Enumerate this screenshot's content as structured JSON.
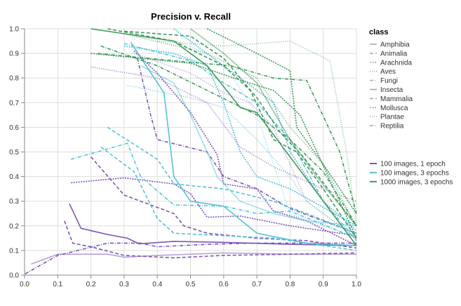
{
  "chart_data": {
    "type": "line",
    "title": "Precision v. Recall",
    "xlabel": "",
    "ylabel": "",
    "xlim": [
      0,
      1
    ],
    "ylim": [
      0,
      1
    ],
    "x_ticks": [
      "0.0",
      "0.1",
      "0.2",
      "0.3",
      "0.4",
      "0.5",
      "0.6",
      "0.7",
      "0.8",
      "0.9",
      "1.0"
    ],
    "y_ticks": [
      "0.0",
      "0.1",
      "0.2",
      "0.3",
      "0.4",
      "0.5",
      "0.6",
      "0.7",
      "0.8",
      "0.9",
      "1.0"
    ],
    "grid": true,
    "legend_placement": "right",
    "class_legend": {
      "title": "class",
      "entries": [
        {
          "name": "Amphibia",
          "dash": "solid"
        },
        {
          "name": "Animalia",
          "dash": "dashed"
        },
        {
          "name": "Arachnida",
          "dash": "dotted"
        },
        {
          "name": "Aves",
          "dash": "sparse-dotted"
        },
        {
          "name": "Fungi",
          "dash": "dash-dot"
        },
        {
          "name": "Insecta",
          "dash": "solid"
        },
        {
          "name": "Mammalia",
          "dash": "dashed"
        },
        {
          "name": "Mollusca",
          "dash": "dotted"
        },
        {
          "name": "Plantae",
          "dash": "sparse-dotted"
        },
        {
          "name": "Reptilia",
          "dash": "dash-dot"
        }
      ]
    },
    "model_legend": [
      {
        "name": "100 images, 1 epoch",
        "color": "#7d55b8"
      },
      {
        "name": "100 images, 3 epochs",
        "color": "#55c3d5"
      },
      {
        "name": "1000 images, 3 epochs",
        "color": "#3f9a5c"
      }
    ],
    "series": [
      {
        "model": "100 images, 1 epoch",
        "class": "Amphibia",
        "points": [
          [
            0.02,
            0.045
          ],
          [
            0.1,
            0.085
          ],
          [
            0.25,
            0.085
          ],
          [
            0.3,
            0.073
          ],
          [
            0.4,
            0.08
          ],
          [
            0.5,
            0.085
          ],
          [
            0.6,
            0.09
          ],
          [
            0.7,
            0.088
          ],
          [
            0.8,
            0.085
          ],
          [
            1,
            0.085
          ]
        ]
      },
      {
        "model": "100 images, 1 epoch",
        "class": "Insecta",
        "points": [
          [
            0.135,
            0.29
          ],
          [
            0.17,
            0.19
          ],
          [
            0.25,
            0.165
          ],
          [
            0.31,
            0.15
          ],
          [
            0.345,
            0.127
          ],
          [
            0.45,
            0.137
          ],
          [
            0.6,
            0.133
          ],
          [
            0.8,
            0.125
          ],
          [
            1,
            0.12
          ]
        ]
      },
      {
        "model": "100 images, 1 epoch",
        "class": "Animalia",
        "points": [
          [
            0.12,
            0.22
          ],
          [
            0.145,
            0.13
          ],
          [
            0.2,
            0.115
          ],
          [
            0.3,
            0.08
          ],
          [
            0.45,
            0.07
          ],
          [
            0.6,
            0.08
          ],
          [
            0.8,
            0.085
          ],
          [
            1,
            0.09
          ]
        ]
      },
      {
        "model": "100 images, 1 epoch",
        "class": "Mammalia",
        "points": [
          [
            0.2,
            0.48
          ],
          [
            0.3,
            0.325
          ],
          [
            0.45,
            0.25
          ],
          [
            0.48,
            0.2
          ],
          [
            0.55,
            0.17
          ],
          [
            0.7,
            0.15
          ],
          [
            0.85,
            0.14
          ],
          [
            1,
            0.11
          ]
        ]
      },
      {
        "model": "100 images, 1 epoch",
        "class": "Arachnida",
        "points": [
          [
            0.14,
            0.375
          ],
          [
            0.3,
            0.395
          ],
          [
            0.45,
            0.37
          ],
          [
            0.5,
            0.33
          ],
          [
            0.55,
            0.235
          ],
          [
            0.65,
            0.24
          ],
          [
            0.8,
            0.2
          ],
          [
            1,
            0.16
          ]
        ]
      },
      {
        "model": "100 images, 1 epoch",
        "class": "Mollusca",
        "points": [
          [
            0.33,
            0.91
          ],
          [
            0.4,
            0.82
          ],
          [
            0.5,
            0.66
          ],
          [
            0.58,
            0.49
          ],
          [
            0.6,
            0.37
          ],
          [
            0.7,
            0.35
          ],
          [
            0.75,
            0.26
          ],
          [
            0.85,
            0.22
          ],
          [
            1,
            0.12
          ]
        ]
      },
      {
        "model": "100 images, 1 epoch",
        "class": "Aves",
        "points": [
          [
            0.2,
            0.845
          ],
          [
            0.4,
            0.8
          ],
          [
            0.55,
            0.7
          ],
          [
            0.65,
            0.52
          ],
          [
            0.75,
            0.44
          ],
          [
            0.9,
            0.35
          ],
          [
            1,
            0.3
          ]
        ]
      },
      {
        "model": "100 images, 1 epoch",
        "class": "Plantae",
        "points": [
          [
            0.33,
            0.9
          ],
          [
            0.5,
            0.82
          ],
          [
            0.6,
            0.74
          ],
          [
            0.68,
            0.7
          ],
          [
            0.75,
            0.6
          ],
          [
            0.8,
            0.45
          ],
          [
            0.85,
            0.3
          ],
          [
            1,
            0.15
          ]
        ]
      },
      {
        "model": "100 images, 1 epoch",
        "class": "Reptilia",
        "points": [
          [
            0.002,
            0.005
          ],
          [
            0.1,
            0.08
          ],
          [
            0.25,
            0.13
          ],
          [
            0.35,
            0.13
          ],
          [
            0.4,
            0.115
          ],
          [
            0.55,
            0.125
          ],
          [
            0.7,
            0.13
          ],
          [
            1,
            0.13
          ]
        ]
      },
      {
        "model": "100 images, 1 epoch",
        "class": "Fungi",
        "points": [
          [
            0.34,
            0.88
          ],
          [
            0.38,
            0.65
          ],
          [
            0.4,
            0.55
          ],
          [
            0.55,
            0.5
          ],
          [
            0.6,
            0.4
          ],
          [
            0.7,
            0.35
          ],
          [
            0.8,
            0.27
          ],
          [
            1,
            0.17
          ]
        ]
      },
      {
        "model": "100 images, 3 epochs",
        "class": "Insecta",
        "points": [
          [
            0.32,
            0.945
          ],
          [
            0.42,
            0.74
          ],
          [
            0.45,
            0.4
          ],
          [
            0.5,
            0.3
          ],
          [
            0.6,
            0.28
          ],
          [
            0.7,
            0.17
          ],
          [
            0.85,
            0.13
          ],
          [
            1,
            0.12
          ]
        ]
      },
      {
        "model": "100 images, 3 epochs",
        "class": "Amphibia",
        "points": [
          [
            0.35,
            0.85
          ],
          [
            0.45,
            0.78
          ],
          [
            0.5,
            0.65
          ],
          [
            0.55,
            0.5
          ],
          [
            0.58,
            0.4
          ],
          [
            0.65,
            0.3
          ],
          [
            0.75,
            0.25
          ],
          [
            0.85,
            0.22
          ],
          [
            1,
            0.2
          ]
        ]
      },
      {
        "model": "100 images, 3 epochs",
        "class": "Animalia",
        "points": [
          [
            0.25,
            0.6
          ],
          [
            0.4,
            0.47
          ],
          [
            0.45,
            0.37
          ],
          [
            0.6,
            0.35
          ],
          [
            0.75,
            0.3
          ],
          [
            0.85,
            0.25
          ],
          [
            1,
            0.17
          ]
        ]
      },
      {
        "model": "100 images, 3 epochs",
        "class": "Mammalia",
        "points": [
          [
            0.23,
            0.52
          ],
          [
            0.33,
            0.42
          ],
          [
            0.4,
            0.23
          ],
          [
            0.45,
            0.17
          ],
          [
            0.6,
            0.16
          ],
          [
            0.75,
            0.15
          ],
          [
            1,
            0.1
          ]
        ]
      },
      {
        "model": "100 images, 3 epochs",
        "class": "Fungi",
        "points": [
          [
            0.14,
            0.47
          ],
          [
            0.31,
            0.535
          ],
          [
            0.35,
            0.4
          ],
          [
            0.45,
            0.285
          ],
          [
            0.6,
            0.28
          ],
          [
            0.7,
            0.25
          ],
          [
            0.8,
            0.26
          ],
          [
            1,
            0.15
          ]
        ]
      },
      {
        "model": "100 images, 3 epochs",
        "class": "Reptilia",
        "points": [
          [
            0.3,
            0.94
          ],
          [
            0.5,
            0.87
          ],
          [
            0.6,
            0.78
          ],
          [
            0.7,
            0.7
          ],
          [
            0.8,
            0.55
          ],
          [
            0.9,
            0.3
          ],
          [
            1,
            0.14
          ]
        ]
      },
      {
        "model": "100 images, 3 epochs",
        "class": "Aves",
        "points": [
          [
            0.31,
            0.77
          ],
          [
            0.5,
            0.72
          ],
          [
            0.6,
            0.68
          ],
          [
            0.7,
            0.55
          ],
          [
            0.8,
            0.4
          ],
          [
            0.85,
            0.3
          ],
          [
            1,
            0.15
          ]
        ]
      },
      {
        "model": "100 images, 3 epochs",
        "class": "Plantae",
        "points": [
          [
            0.4,
            0.98
          ],
          [
            0.55,
            0.9
          ],
          [
            0.62,
            0.82
          ],
          [
            0.7,
            0.65
          ],
          [
            0.75,
            0.45
          ],
          [
            0.8,
            0.25
          ],
          [
            1,
            0.15
          ]
        ]
      },
      {
        "model": "100 images, 3 epochs",
        "class": "Arachnida",
        "points": [
          [
            0.3,
            0.93
          ],
          [
            0.45,
            0.9
          ],
          [
            0.55,
            0.85
          ],
          [
            0.6,
            0.7
          ],
          [
            0.65,
            0.5
          ],
          [
            0.7,
            0.4
          ],
          [
            0.8,
            0.35
          ],
          [
            1,
            0.2
          ]
        ]
      },
      {
        "model": "100 images, 3 epochs",
        "class": "Mollusca",
        "points": [
          [
            0.45,
            1
          ],
          [
            0.6,
            0.85
          ],
          [
            0.7,
            0.75
          ],
          [
            0.75,
            0.7
          ],
          [
            0.8,
            0.5
          ],
          [
            0.9,
            0.3
          ],
          [
            1,
            0.18
          ]
        ]
      },
      {
        "model": "1000 images, 3 epochs",
        "class": "Insecta",
        "points": [
          [
            0.2,
            1
          ],
          [
            0.3,
            0.98
          ],
          [
            0.45,
            0.95
          ],
          [
            0.55,
            0.85
          ],
          [
            0.65,
            0.68
          ],
          [
            0.7,
            0.66
          ],
          [
            0.8,
            0.48
          ],
          [
            0.9,
            0.3
          ],
          [
            1,
            0.12
          ]
        ]
      },
      {
        "model": "1000 images, 3 epochs",
        "class": "Amphibia",
        "points": [
          [
            0.5,
            1
          ],
          [
            0.6,
            0.9
          ],
          [
            0.7,
            0.78
          ],
          [
            0.8,
            0.55
          ],
          [
            0.88,
            0.4
          ],
          [
            1,
            0.2
          ]
        ]
      },
      {
        "model": "1000 images, 3 epochs",
        "class": "Animalia",
        "points": [
          [
            0.25,
            1
          ],
          [
            0.45,
            0.95
          ],
          [
            0.6,
            0.85
          ],
          [
            0.68,
            0.75
          ],
          [
            0.75,
            0.55
          ],
          [
            0.82,
            0.5
          ],
          [
            0.9,
            0.35
          ],
          [
            1,
            0.15
          ]
        ]
      },
      {
        "model": "1000 images, 3 epochs",
        "class": "Mammalia",
        "points": [
          [
            0.3,
            0.99
          ],
          [
            0.5,
            0.97
          ],
          [
            0.6,
            0.88
          ],
          [
            0.7,
            0.72
          ],
          [
            0.77,
            0.58
          ],
          [
            0.84,
            0.48
          ],
          [
            1,
            0.2
          ]
        ]
      },
      {
        "model": "1000 images, 3 epochs",
        "class": "Arachnida",
        "points": [
          [
            0.2,
            0.9
          ],
          [
            0.5,
            0.86
          ],
          [
            0.63,
            0.8
          ],
          [
            0.75,
            0.75
          ],
          [
            0.83,
            0.65
          ],
          [
            1,
            0.15
          ]
        ]
      },
      {
        "model": "1000 images, 3 epochs",
        "class": "Plantae",
        "points": [
          [
            0.4,
            0.95
          ],
          [
            0.6,
            0.93
          ],
          [
            0.8,
            0.95
          ],
          [
            0.92,
            0.87
          ],
          [
            0.97,
            0.5
          ],
          [
            1,
            0.2
          ]
        ]
      },
      {
        "model": "1000 images, 3 epochs",
        "class": "Mollusca",
        "points": [
          [
            0.55,
            1
          ],
          [
            0.7,
            0.9
          ],
          [
            0.8,
            0.83
          ],
          [
            0.82,
            0.6
          ],
          [
            0.9,
            0.45
          ],
          [
            1,
            0.25
          ]
        ]
      },
      {
        "model": "1000 images, 3 epochs",
        "class": "Aves",
        "points": [
          [
            0.3,
            0.98
          ],
          [
            0.55,
            0.9
          ],
          [
            0.7,
            0.8
          ],
          [
            0.8,
            0.6
          ],
          [
            0.9,
            0.45
          ],
          [
            1,
            0.2
          ]
        ]
      },
      {
        "model": "1000 images, 3 epochs",
        "class": "Fungi",
        "points": [
          [
            0.23,
            0.93
          ],
          [
            0.4,
            0.85
          ],
          [
            0.55,
            0.75
          ],
          [
            0.7,
            0.65
          ],
          [
            0.8,
            0.55
          ],
          [
            0.9,
            0.42
          ],
          [
            1,
            0.2
          ]
        ]
      },
      {
        "model": "1000 images, 3 epochs",
        "class": "Reptilia",
        "points": [
          [
            0.22,
            0.9
          ],
          [
            0.45,
            0.87
          ],
          [
            0.62,
            0.85
          ],
          [
            0.75,
            0.8
          ],
          [
            0.85,
            0.79
          ],
          [
            0.95,
            0.5
          ],
          [
            1,
            0.25
          ]
        ]
      }
    ]
  }
}
